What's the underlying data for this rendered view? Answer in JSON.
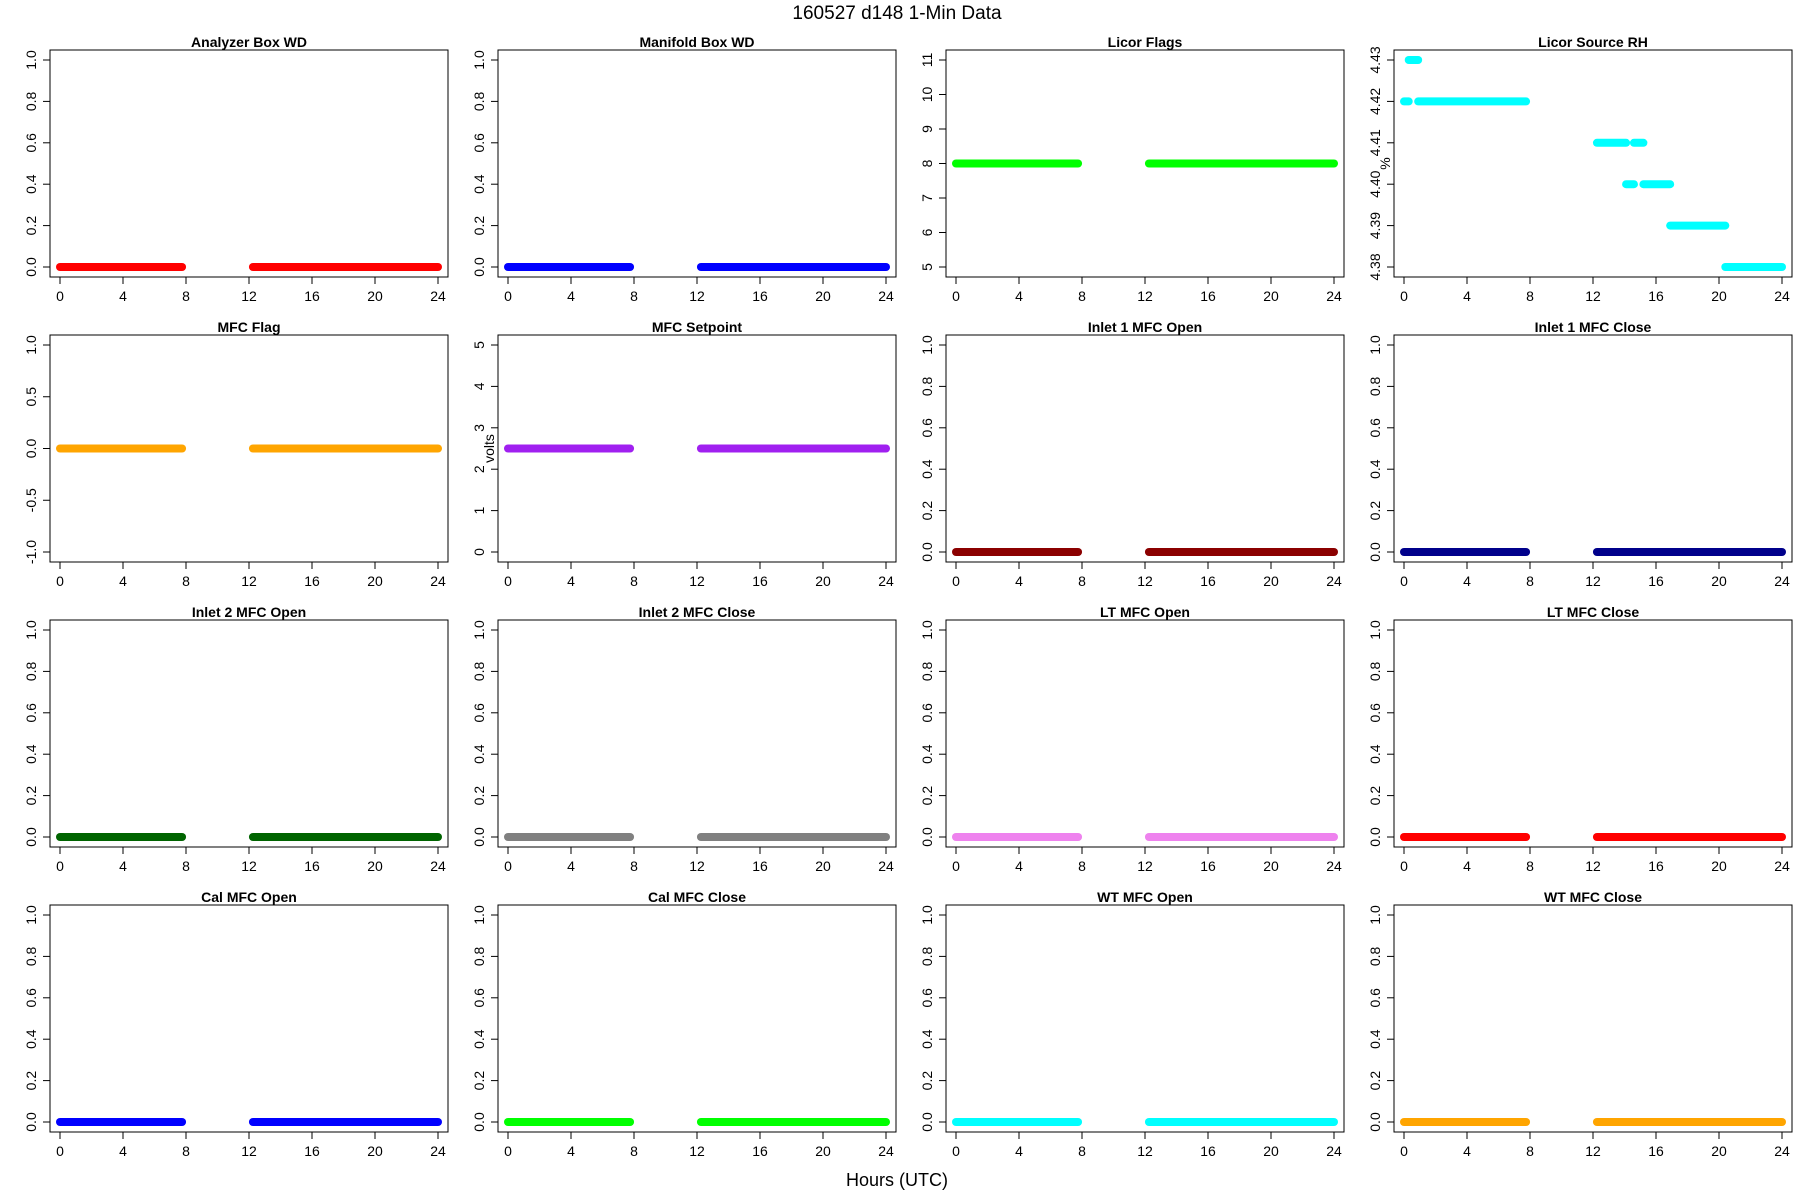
{
  "figure": {
    "title": "160527   d148   1-Min Data",
    "xlabel": "Hours (UTC)"
  },
  "chart_data": [
    {
      "type": "scatter",
      "title": "Analyzer Box WD",
      "ylabel": "",
      "color": "#ff0000",
      "xlim": [
        0,
        24
      ],
      "ylim": [
        0,
        1
      ],
      "xticks": [
        0,
        4,
        8,
        12,
        16,
        20,
        24
      ],
      "yticks": [
        "0.0",
        "0.2",
        "0.4",
        "0.6",
        "0.8",
        "1.0"
      ],
      "series": [
        {
          "x": [
            0,
            7.75
          ],
          "y": 0
        },
        {
          "x": [
            12.25,
            24
          ],
          "y": 0
        }
      ]
    },
    {
      "type": "scatter",
      "title": "Manifold Box WD",
      "ylabel": "",
      "color": "#0000ff",
      "xlim": [
        0,
        24
      ],
      "ylim": [
        0,
        1
      ],
      "xticks": [
        0,
        4,
        8,
        12,
        16,
        20,
        24
      ],
      "yticks": [
        "0.0",
        "0.2",
        "0.4",
        "0.6",
        "0.8",
        "1.0"
      ],
      "series": [
        {
          "x": [
            0,
            7.75
          ],
          "y": 0
        },
        {
          "x": [
            12.25,
            24
          ],
          "y": 0
        }
      ]
    },
    {
      "type": "scatter",
      "title": "Licor Flags",
      "ylabel": "",
      "color": "#00ff00",
      "xlim": [
        0,
        24
      ],
      "ylim": [
        5,
        11
      ],
      "xticks": [
        0,
        4,
        8,
        12,
        16,
        20,
        24
      ],
      "yticks": [
        "5",
        "6",
        "7",
        "8",
        "9",
        "10",
        "11"
      ],
      "series": [
        {
          "x": [
            0,
            7.75
          ],
          "y": 8
        },
        {
          "x": [
            12.25,
            24
          ],
          "y": 8
        }
      ]
    },
    {
      "type": "scatter",
      "title": "Licor Source RH",
      "ylabel": "%",
      "color": "#00ffff",
      "xlim": [
        0,
        24
      ],
      "ylim": [
        4.38,
        4.43
      ],
      "xticks": [
        0,
        4,
        8,
        12,
        16,
        20,
        24
      ],
      "yticks": [
        "4.38",
        "4.39",
        "4.40",
        "4.41",
        "4.42",
        "4.43"
      ],
      "series": [
        {
          "x": [
            0,
            0.3
          ],
          "y": 4.42
        },
        {
          "x": [
            0.3,
            0.9
          ],
          "y": 4.43
        },
        {
          "x": [
            0.9,
            7.75
          ],
          "y": 4.42
        },
        {
          "x": [
            12.25,
            14.1
          ],
          "y": 4.41
        },
        {
          "x": [
            14.1,
            14.6
          ],
          "y": 4.4
        },
        {
          "x": [
            14.6,
            15.2
          ],
          "y": 4.41
        },
        {
          "x": [
            15.2,
            16.9
          ],
          "y": 4.4
        },
        {
          "x": [
            16.9,
            20.4
          ],
          "y": 4.39
        },
        {
          "x": [
            20.4,
            24
          ],
          "y": 4.38
        }
      ]
    },
    {
      "type": "scatter",
      "title": "MFC Flag",
      "ylabel": "",
      "color": "#ffa500",
      "xlim": [
        0,
        24
      ],
      "ylim": [
        -1,
        1
      ],
      "xticks": [
        0,
        4,
        8,
        12,
        16,
        20,
        24
      ],
      "yticks": [
        "-1.0",
        "-0.5",
        "0.0",
        "0.5",
        "1.0"
      ],
      "series": [
        {
          "x": [
            0,
            7.75
          ],
          "y": 0
        },
        {
          "x": [
            12.25,
            24
          ],
          "y": 0
        }
      ]
    },
    {
      "type": "scatter",
      "title": "MFC Setpoint",
      "ylabel": "volts",
      "color": "#a020f0",
      "xlim": [
        0,
        24
      ],
      "ylim": [
        0,
        5
      ],
      "xticks": [
        0,
        4,
        8,
        12,
        16,
        20,
        24
      ],
      "yticks": [
        "0",
        "1",
        "2",
        "3",
        "4",
        "5"
      ],
      "series": [
        {
          "x": [
            0,
            7.75
          ],
          "y": 2.5
        },
        {
          "x": [
            12.25,
            24
          ],
          "y": 2.5
        }
      ]
    },
    {
      "type": "scatter",
      "title": "Inlet 1 MFC Open",
      "ylabel": "",
      "color": "#8b0000",
      "xlim": [
        0,
        24
      ],
      "ylim": [
        0,
        1
      ],
      "xticks": [
        0,
        4,
        8,
        12,
        16,
        20,
        24
      ],
      "yticks": [
        "0.0",
        "0.2",
        "0.4",
        "0.6",
        "0.8",
        "1.0"
      ],
      "series": [
        {
          "x": [
            0,
            7.75
          ],
          "y": 0
        },
        {
          "x": [
            12.25,
            24
          ],
          "y": 0
        }
      ]
    },
    {
      "type": "scatter",
      "title": "Inlet 1 MFC Close",
      "ylabel": "",
      "color": "#00008b",
      "xlim": [
        0,
        24
      ],
      "ylim": [
        0,
        1
      ],
      "xticks": [
        0,
        4,
        8,
        12,
        16,
        20,
        24
      ],
      "yticks": [
        "0.0",
        "0.2",
        "0.4",
        "0.6",
        "0.8",
        "1.0"
      ],
      "series": [
        {
          "x": [
            0,
            7.75
          ],
          "y": 0
        },
        {
          "x": [
            12.25,
            24
          ],
          "y": 0
        }
      ]
    },
    {
      "type": "scatter",
      "title": "Inlet 2 MFC Open",
      "ylabel": "",
      "color": "#006400",
      "xlim": [
        0,
        24
      ],
      "ylim": [
        0,
        1
      ],
      "xticks": [
        0,
        4,
        8,
        12,
        16,
        20,
        24
      ],
      "yticks": [
        "0.0",
        "0.2",
        "0.4",
        "0.6",
        "0.8",
        "1.0"
      ],
      "series": [
        {
          "x": [
            0,
            7.75
          ],
          "y": 0
        },
        {
          "x": [
            12.25,
            24
          ],
          "y": 0
        }
      ]
    },
    {
      "type": "scatter",
      "title": "Inlet 2 MFC Close",
      "ylabel": "",
      "color": "#808080",
      "xlim": [
        0,
        24
      ],
      "ylim": [
        0,
        1
      ],
      "xticks": [
        0,
        4,
        8,
        12,
        16,
        20,
        24
      ],
      "yticks": [
        "0.0",
        "0.2",
        "0.4",
        "0.6",
        "0.8",
        "1.0"
      ],
      "series": [
        {
          "x": [
            0,
            7.75
          ],
          "y": 0
        },
        {
          "x": [
            12.25,
            24
          ],
          "y": 0
        }
      ]
    },
    {
      "type": "scatter",
      "title": "LT MFC Open",
      "ylabel": "",
      "color": "#ee82ee",
      "xlim": [
        0,
        24
      ],
      "ylim": [
        0,
        1
      ],
      "xticks": [
        0,
        4,
        8,
        12,
        16,
        20,
        24
      ],
      "yticks": [
        "0.0",
        "0.2",
        "0.4",
        "0.6",
        "0.8",
        "1.0"
      ],
      "series": [
        {
          "x": [
            0,
            7.75
          ],
          "y": 0
        },
        {
          "x": [
            12.25,
            24
          ],
          "y": 0
        }
      ]
    },
    {
      "type": "scatter",
      "title": "LT MFC Close",
      "ylabel": "",
      "color": "#ff0000",
      "xlim": [
        0,
        24
      ],
      "ylim": [
        0,
        1
      ],
      "xticks": [
        0,
        4,
        8,
        12,
        16,
        20,
        24
      ],
      "yticks": [
        "0.0",
        "0.2",
        "0.4",
        "0.6",
        "0.8",
        "1.0"
      ],
      "series": [
        {
          "x": [
            0,
            7.75
          ],
          "y": 0
        },
        {
          "x": [
            12.25,
            24
          ],
          "y": 0
        }
      ]
    },
    {
      "type": "scatter",
      "title": "Cal MFC Open",
      "ylabel": "",
      "color": "#0000ff",
      "xlim": [
        0,
        24
      ],
      "ylim": [
        0,
        1
      ],
      "xticks": [
        0,
        4,
        8,
        12,
        16,
        20,
        24
      ],
      "yticks": [
        "0.0",
        "0.2",
        "0.4",
        "0.6",
        "0.8",
        "1.0"
      ],
      "series": [
        {
          "x": [
            0,
            7.75
          ],
          "y": 0
        },
        {
          "x": [
            12.25,
            24
          ],
          "y": 0
        }
      ]
    },
    {
      "type": "scatter",
      "title": "Cal MFC Close",
      "ylabel": "",
      "color": "#00ff00",
      "xlim": [
        0,
        24
      ],
      "ylim": [
        0,
        1
      ],
      "xticks": [
        0,
        4,
        8,
        12,
        16,
        20,
        24
      ],
      "yticks": [
        "0.0",
        "0.2",
        "0.4",
        "0.6",
        "0.8",
        "1.0"
      ],
      "series": [
        {
          "x": [
            0,
            7.75
          ],
          "y": 0
        },
        {
          "x": [
            12.25,
            24
          ],
          "y": 0
        }
      ]
    },
    {
      "type": "scatter",
      "title": "WT MFC Open",
      "ylabel": "",
      "color": "#00ffff",
      "xlim": [
        0,
        24
      ],
      "ylim": [
        0,
        1
      ],
      "xticks": [
        0,
        4,
        8,
        12,
        16,
        20,
        24
      ],
      "yticks": [
        "0.0",
        "0.2",
        "0.4",
        "0.6",
        "0.8",
        "1.0"
      ],
      "series": [
        {
          "x": [
            0,
            7.75
          ],
          "y": 0
        },
        {
          "x": [
            12.25,
            24
          ],
          "y": 0
        }
      ]
    },
    {
      "type": "scatter",
      "title": "WT MFC Close",
      "ylabel": "",
      "color": "#ffa500",
      "xlim": [
        0,
        24
      ],
      "ylim": [
        0,
        1
      ],
      "xticks": [
        0,
        4,
        8,
        12,
        16,
        20,
        24
      ],
      "yticks": [
        "0.0",
        "0.2",
        "0.4",
        "0.6",
        "0.8",
        "1.0"
      ],
      "series": [
        {
          "x": [
            0,
            7.75
          ],
          "y": 0
        },
        {
          "x": [
            12.25,
            24
          ],
          "y": 0
        }
      ]
    }
  ]
}
